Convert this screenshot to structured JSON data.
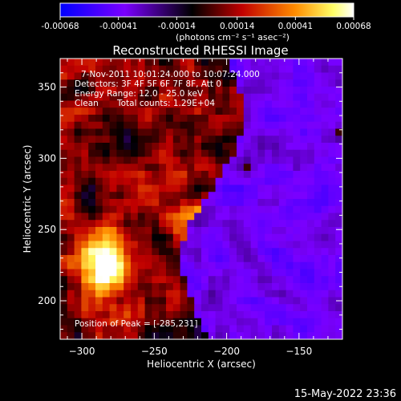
{
  "colorbar": {
    "ticks": [
      "-0.00068",
      "-0.00041",
      "-0.00014",
      "0.00014",
      "0.00041",
      "0.00068"
    ],
    "units": "(photons cm⁻² s⁻¹ asec⁻²)",
    "colors": [
      "#0000ff",
      "#7a00ff",
      "#000000",
      "#c10000",
      "#ff8c00",
      "#ffff66",
      "#ffffff"
    ]
  },
  "chart_data": {
    "type": "heatmap",
    "title": "Reconstructed RHESSI Image",
    "xlabel": "Heliocentric X (arcsec)",
    "ylabel": "Heliocentric Y (arcsec)",
    "xlim": [
      -315,
      -120
    ],
    "ylim": [
      173,
      370
    ],
    "xticks": [
      -300,
      -250,
      -200,
      -150
    ],
    "yticks": [
      200,
      250,
      300,
      350
    ],
    "peak": [
      -285,
      231
    ],
    "value_range": [
      -0.00068,
      0.00068
    ],
    "annotations": {
      "time_range": "7-Nov-2011 10:01:24.000 to 10:07:24.000",
      "detectors": "Detectors: 3F 4F 5F 6F 7F 8F, Att 0",
      "energy": "Energy Range: 12.0 - 25.0 keV",
      "clean": "Clean",
      "counts": "Total counts: 1.29E+04",
      "peak_text": "Position of Peak = [-285,231]"
    }
  },
  "footer": {
    "timestamp": "15-May-2022 23:36"
  }
}
